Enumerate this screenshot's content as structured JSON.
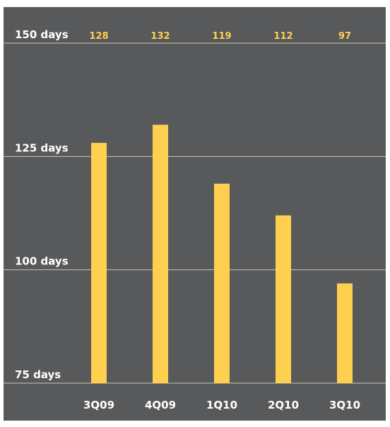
{
  "chart_data": {
    "type": "bar",
    "title": "",
    "xlabel": "",
    "ylabel": "",
    "categories": [
      "3Q09",
      "4Q09",
      "1Q10",
      "2Q10",
      "3Q10"
    ],
    "values": [
      128,
      132,
      119,
      112,
      97
    ],
    "value_labels": [
      "128",
      "132",
      "119",
      "112",
      "97"
    ],
    "ylim": [
      75,
      150
    ],
    "y_ticks": [
      150,
      125,
      100,
      75
    ],
    "y_tick_labels": [
      "150 days",
      "125 days",
      "100 days",
      "75 days"
    ],
    "grid": true,
    "value_labels_position": "top-row"
  },
  "colors": {
    "background": "#58595b",
    "bar": "#ffd04f",
    "value_label": "#ffd04f",
    "gridline": "#c8c9a8",
    "text": "#ffffff"
  }
}
